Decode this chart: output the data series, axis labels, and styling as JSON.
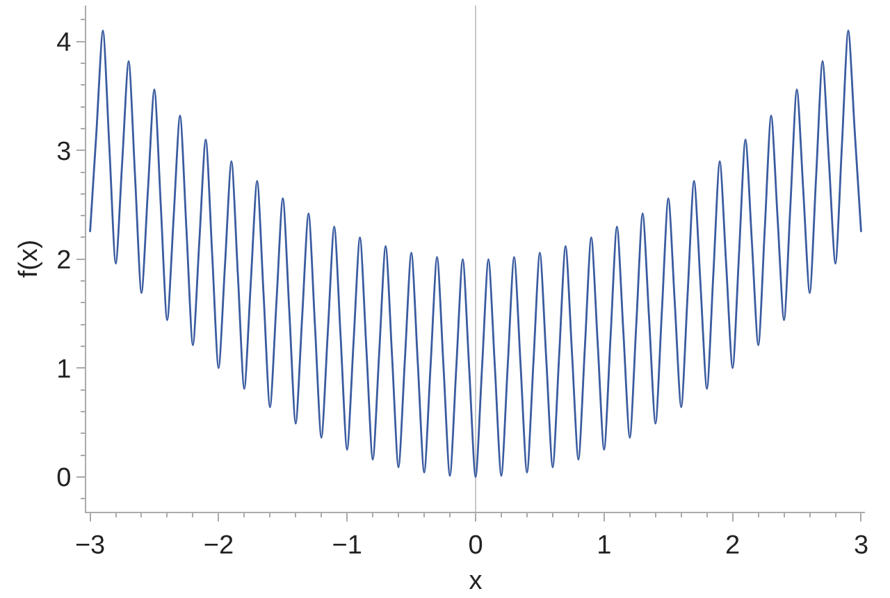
{
  "chart_data": {
    "type": "line",
    "xlabel": "x",
    "ylabel": "f(x)",
    "x": [
      -3,
      -2.95,
      -2.9,
      -2.85,
      -2.8,
      -2.75,
      -2.7,
      -2.65,
      -2.6,
      -2.55,
      -2.5,
      -2.45,
      -2.4,
      -2.35,
      -2.3,
      -2.25,
      -2.2,
      -2.15,
      -2.1,
      -2.05,
      -2,
      -1.95,
      -1.9,
      -1.85,
      -1.8,
      -1.75,
      -1.7,
      -1.65,
      -1.6,
      -1.55,
      -1.5,
      -1.45,
      -1.4,
      -1.35,
      -1.3,
      -1.25,
      -1.2,
      -1.15,
      -1.1,
      -1.05,
      -1,
      -0.95,
      -0.9,
      -0.85,
      -0.8,
      -0.75,
      -0.7,
      -0.65,
      -0.6,
      -0.55,
      -0.5,
      -0.45,
      -0.4,
      -0.35,
      -0.3,
      -0.25,
      -0.2,
      -0.15,
      -0.1,
      -0.05,
      0,
      0.05,
      0.1,
      0.15,
      0.2,
      0.25,
      0.3,
      0.35,
      0.4,
      0.45,
      0.5,
      0.55,
      0.6,
      0.65,
      0.7,
      0.75,
      0.8,
      0.85,
      0.9,
      0.95,
      1,
      1.05,
      1.1,
      1.15,
      1.2,
      1.25,
      1.3,
      1.35,
      1.4,
      1.45,
      1.5,
      1.55,
      1.6,
      1.65,
      1.7,
      1.75,
      1.8,
      1.85,
      1.9,
      1.95,
      2,
      2.05,
      2.1,
      2.15,
      2.2,
      2.25,
      2.3,
      2.35,
      2.4,
      2.45,
      2.5,
      2.55,
      2.6,
      2.65,
      2.7,
      2.75,
      2.8,
      2.85,
      2.9,
      2.95,
      3
    ],
    "series": [
      {
        "color": "#3a5ba0",
        "values": [
          2.25,
          3.18,
          4.1,
          3.03,
          1.96,
          2.89,
          3.82,
          2.76,
          1.69,
          2.63,
          3.56,
          2.5,
          1.44,
          2.38,
          3.32,
          2.27,
          1.21,
          2.16,
          3.1,
          2.05,
          1.0,
          1.95,
          2.9,
          1.86,
          0.81,
          1.77,
          2.72,
          1.68,
          0.64,
          1.6,
          2.56,
          1.53,
          0.49,
          1.46,
          2.42,
          1.39,
          0.36,
          1.33,
          2.3,
          1.28,
          0.25,
          1.23,
          2.2,
          1.18,
          0.16,
          1.14,
          2.12,
          1.11,
          0.09,
          1.08,
          2.06,
          1.05,
          0.04,
          1.03,
          2.02,
          1.02,
          0.01,
          1.01,
          2.0,
          1.0,
          0,
          1.0,
          2.0,
          1.01,
          0.01,
          1.02,
          2.02,
          1.03,
          0.04,
          1.05,
          2.06,
          1.08,
          0.09,
          1.11,
          2.12,
          1.14,
          0.16,
          1.18,
          2.2,
          1.23,
          0.25,
          1.28,
          2.3,
          1.33,
          0.36,
          1.39,
          2.42,
          1.46,
          0.49,
          1.53,
          2.56,
          1.6,
          0.64,
          1.68,
          2.72,
          1.77,
          0.81,
          1.86,
          2.9,
          1.95,
          1.0,
          2.05,
          3.1,
          2.16,
          1.21,
          2.27,
          3.32,
          2.38,
          1.44,
          2.5,
          3.56,
          2.63,
          1.69,
          2.76,
          3.82,
          2.89,
          1.96,
          3.03,
          4.1,
          3.18,
          2.25
        ]
      }
    ],
    "xlim": [
      -3.03,
      3.03
    ],
    "ylim": [
      -0.32,
      4.33
    ],
    "xticks": [
      {
        "value": -3,
        "label": "−3"
      },
      {
        "value": -2,
        "label": "−2"
      },
      {
        "value": -1,
        "label": "−1"
      },
      0,
      1,
      2,
      3
    ],
    "yticks": [
      0,
      1,
      2,
      3,
      4
    ],
    "ref_lines": [
      {
        "axis": "x",
        "value": 0,
        "color": "#c8c8c8"
      }
    ],
    "line_style": "solid"
  }
}
